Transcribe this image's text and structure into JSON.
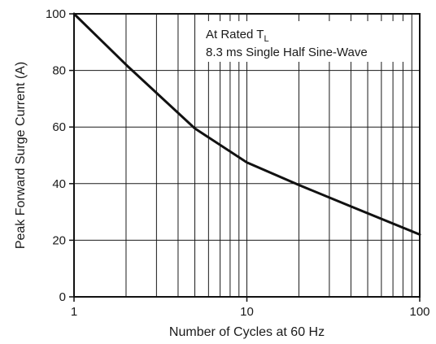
{
  "chart_data": {
    "type": "line",
    "x_scale": "log",
    "xlim": [
      1,
      100
    ],
    "ylim": [
      0,
      100
    ],
    "xlabel": "Number of Cycles at 60 Hz",
    "ylabel": "Peak Forward Surge Current (A)",
    "x_ticks": [
      1,
      10,
      100
    ],
    "y_ticks": [
      0,
      20,
      40,
      60,
      80,
      100
    ],
    "grid": true,
    "annotation": {
      "line1_prefix": "At Rated T",
      "line1_subscript": "L",
      "line2": "8.3 ms Single Half Sine-Wave"
    },
    "series": [
      {
        "x": [
          1,
          2,
          5,
          10,
          20,
          50,
          100
        ],
        "y": [
          100,
          82,
          59.5,
          47.5,
          39.5,
          29.5,
          22
        ]
      }
    ],
    "colors": {
      "line": "#111111",
      "grid": "#1a1a1a",
      "frame": "#111111"
    }
  }
}
